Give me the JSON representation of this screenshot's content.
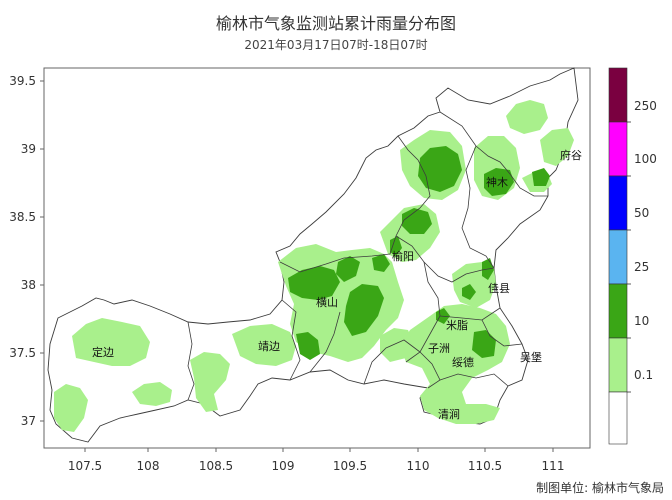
{
  "title": "榆林市气象监测站累计雨量分布图",
  "subtitle": "2021年03月17日07时-18日07时",
  "credit": "制图单位: 榆林市气象局",
  "map": {
    "x_ticks": [
      "107.5",
      "108",
      "108.5",
      "109",
      "109.5",
      "110",
      "110.5",
      "111"
    ],
    "y_ticks": [
      "39.5",
      "39",
      "38.5",
      "38",
      "37.5",
      "37"
    ],
    "places": [
      "府谷",
      "神木",
      "榆阳",
      "佳县",
      "横山",
      "米脂",
      "定边",
      "靖边",
      "子洲",
      "绥德",
      "吴堡",
      "清涧"
    ]
  },
  "legend": {
    "levels": [
      {
        "label": "250",
        "color": "#7a0040"
      },
      {
        "label": "100",
        "color": "#ff00ff"
      },
      {
        "label": "50",
        "color": "#0000ff"
      },
      {
        "label": "25",
        "color": "#5ab4f0"
      },
      {
        "label": "10",
        "color": "#3aa616"
      },
      {
        "label": "0.1",
        "color": "#a9f08c"
      },
      {
        "label": "",
        "color": "#ffffff"
      }
    ]
  },
  "colors": {
    "light_green": "#a9f08c",
    "dark_green": "#3aa616",
    "border": "#3c3c3c"
  }
}
